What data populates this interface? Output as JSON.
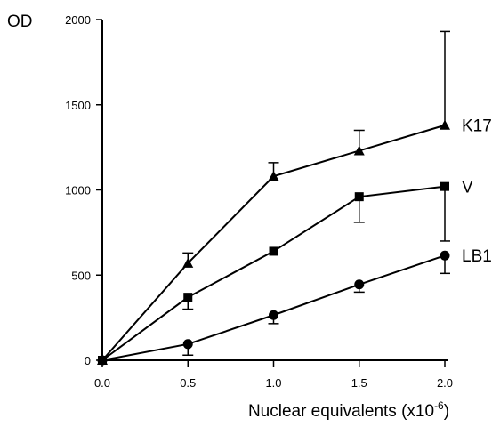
{
  "chart_data": {
    "type": "line",
    "title": "",
    "xlabel": "Nuclear equivalents (x10",
    "xlabel_exponent": "-6",
    "xlabel_suffix": ")",
    "ylabel": "OD",
    "xlim": [
      0,
      2
    ],
    "ylim": [
      0,
      2000
    ],
    "x_ticks": [
      0,
      0.5,
      1.0,
      1.5,
      2.0
    ],
    "x_tick_labels": [
      "0.0",
      "0.5",
      "1.0",
      "1.5",
      "2.0"
    ],
    "y_ticks": [
      0,
      500,
      1000,
      1500,
      2000
    ],
    "y_tick_labels": [
      "0",
      "500",
      "1000",
      "1500",
      "2000"
    ],
    "grid": false,
    "legend_placement": "right (direct labels at line ends)",
    "x": [
      0,
      0.5,
      1.0,
      1.5,
      2.0
    ],
    "series": [
      {
        "name": "K17",
        "marker": "triangle",
        "values": [
          0,
          570,
          1080,
          1230,
          1380
        ],
        "error_upper": [
          0,
          630,
          1160,
          1350,
          1930
        ]
      },
      {
        "name": "V",
        "marker": "square",
        "values": [
          0,
          370,
          640,
          960,
          1020
        ],
        "error_lower": [
          0,
          300,
          640,
          810,
          700
        ]
      },
      {
        "name": "LB1",
        "marker": "circle",
        "values": [
          0,
          95,
          265,
          445,
          615
        ],
        "error_lower": [
          0,
          30,
          215,
          400,
          510
        ]
      }
    ],
    "colors": {
      "line": "#000000",
      "marker": "#000000",
      "background": "#ffffff"
    }
  }
}
